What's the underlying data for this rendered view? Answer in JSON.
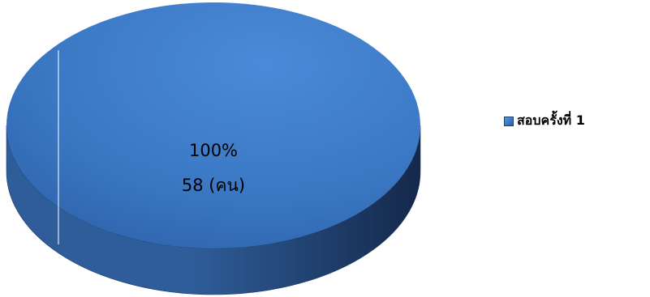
{
  "chart_data": {
    "type": "pie",
    "style": "3d",
    "title": "",
    "categories": [
      "สอบครั้งที่ 1"
    ],
    "values": [
      58
    ],
    "unit": "คน",
    "data_labels": [
      {
        "percent": "100%",
        "value": "58 (คน)"
      }
    ],
    "legend": {
      "placement": "right",
      "entries": [
        "สอบครั้งที่ 1"
      ]
    },
    "colors": {
      "top_light": "#4a8ad8",
      "top_mid": "#3b78c4",
      "top_dark": "#2a5ea3",
      "side_light": "#2f5d99",
      "side_dark": "#14284a",
      "edge": "#1b3a66"
    }
  }
}
